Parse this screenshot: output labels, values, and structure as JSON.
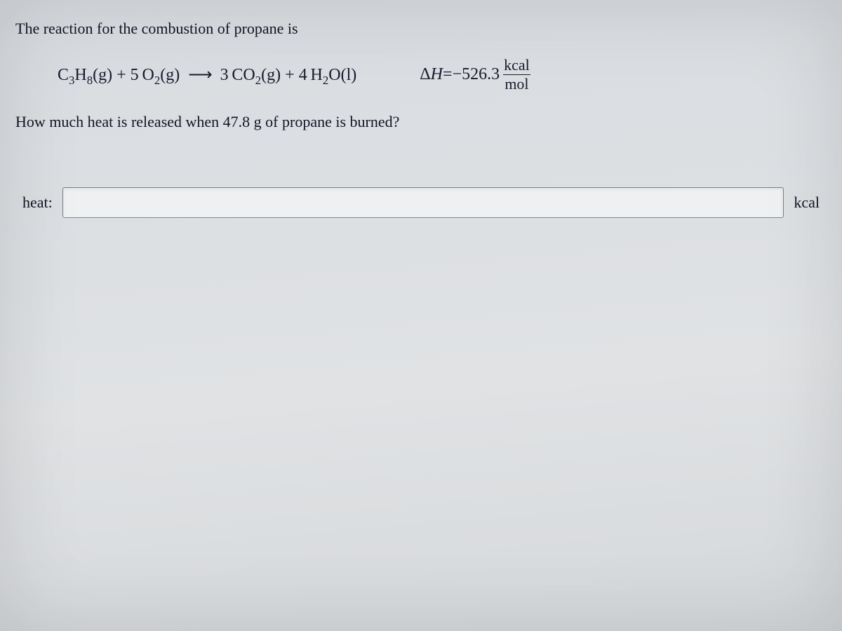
{
  "colors": {
    "text": "#1a1a2e",
    "background_top": "#d8dce0",
    "background_bottom": "#d5d8db",
    "input_border": "#7a7f88",
    "input_bg": "#eef0f2",
    "fraction_rule": "#1a1a2e"
  },
  "typography": {
    "body_font": "Georgia / Times New Roman serif",
    "body_size_pt": 16,
    "equation_size_pt": 18
  },
  "intro_text": "The reaction for the combustion of propane is",
  "equation": {
    "reactant1": {
      "formula": "C",
      "sub1": "3",
      "mid": "H",
      "sub2": "8",
      "state": "(g)"
    },
    "plus1": " + ",
    "coef_o2": "5",
    "reactant2": {
      "formula": "O",
      "sub1": "2",
      "state": "(g)"
    },
    "arrow": "⟶",
    "coef_co2": "3",
    "product1": {
      "formula": "CO",
      "sub1": "2",
      "state": "(g)"
    },
    "plus2": " + ",
    "coef_h2o": "4",
    "product2": {
      "formula": "H",
      "sub1": "2",
      "mid": "O",
      "state": "(l)"
    }
  },
  "delta_h": {
    "label": "Δ",
    "var": "H",
    "equals": " = ",
    "value": "−526.3",
    "unit_num": "kcal",
    "unit_den": "mol"
  },
  "question_text": "How much heat is released when 47.8 g of propane is burned?",
  "answer": {
    "label": "heat:",
    "value": "",
    "placeholder": "",
    "unit": "kcal"
  }
}
